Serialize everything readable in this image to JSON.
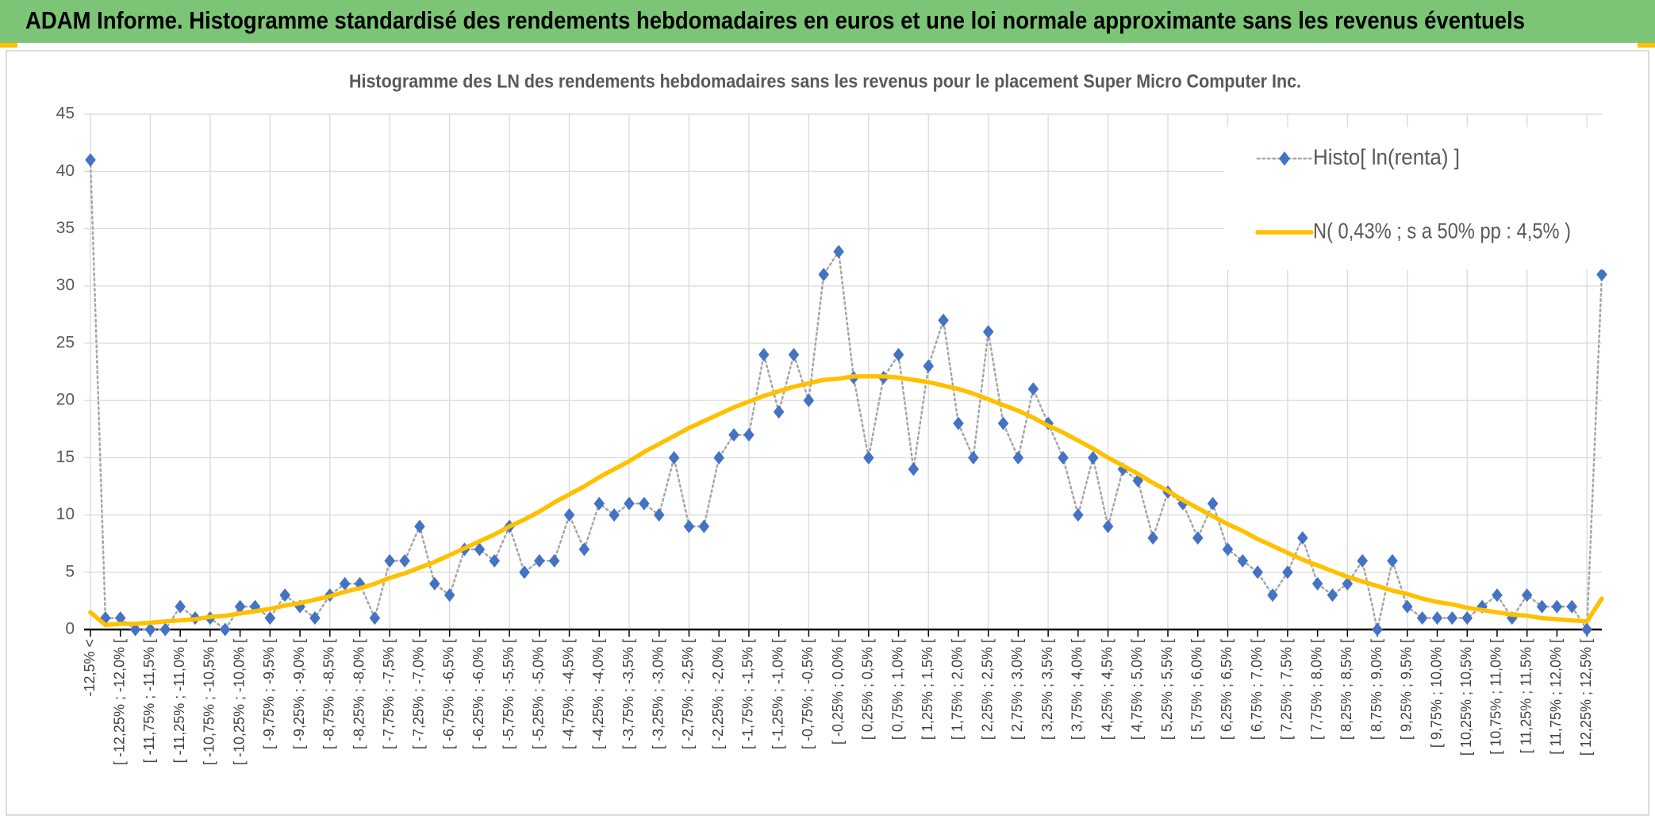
{
  "header": {
    "title": "ADAM Informe. Histogramme standardisé des rendements hebdomadaires en euros et une loi normale approximante sans les revenus éventuels"
  },
  "chart_data": {
    "type": "line",
    "title": "Histogramme des LN des rendements hebdomadaires sans les revenus pour le placement Super Micro Computer Inc.",
    "categories": [
      "-12,5% <",
      null,
      "[ -12,25% ; -12,0% [",
      null,
      "[ -11,75% ; -11,5% [",
      null,
      "[ -11,25% ; -11,0% [",
      null,
      "[ -10,75% ; -10,5% [",
      null,
      "[ -10,25% ; -10,0% [",
      null,
      "[ -9,75% ; -9,5% [",
      null,
      "[ -9,25% ; -9,0% [",
      null,
      "[ -8,75% ; -8,5% [",
      null,
      "[ -8,25% ; -8,0% [",
      null,
      "[ -7,75% ; -7,5% [",
      null,
      "[ -7,25% ; -7,0% [",
      null,
      "[ -6,75% ; -6,5% [",
      null,
      "[ -6,25% ; -6,0% [",
      null,
      "[ -5,75% ; -5,5% [",
      null,
      "[ -5,25% ; -5,0% [",
      null,
      "[ -4,75% ; -4,5% [",
      null,
      "[ -4,25% ; -4,0% [",
      null,
      "[ -3,75% ; -3,5% [",
      null,
      "[ -3,25% ; -3,0% [",
      null,
      "[ -2,75% ; -2,5% [",
      null,
      "[ -2,25% ; -2,0% [",
      null,
      "[ -1,75% ; -1,5% [",
      null,
      "[ -1,25% ; -1,0% [",
      null,
      "[ -0,75% ; -0,5% [",
      null,
      "[ -0,25% ; 0,0% [",
      null,
      "[ 0,25% ; 0,5% [",
      null,
      "[ 0,75% ; 1,0% [",
      null,
      "[ 1,25% ; 1,5% [",
      null,
      "[ 1,75% ; 2,0% [",
      null,
      "[ 2,25% ; 2,5% [",
      null,
      "[ 2,75% ; 3,0% [",
      null,
      "[ 3,25% ; 3,5% [",
      null,
      "[ 3,75% ; 4,0% [",
      null,
      "[ 4,25% ; 4,5% [",
      null,
      "[ 4,75% ; 5,0% [",
      null,
      "[ 5,25% ; 5,5% [",
      null,
      "[ 5,75% ; 6,0% [",
      null,
      "[ 6,25% ; 6,5% [",
      null,
      "[ 6,75% ; 7,0% [",
      null,
      "[ 7,25% ; 7,5% [",
      null,
      "[ 7,75% ; 8,0% [",
      null,
      "[ 8,25% ; 8,5% [",
      null,
      "[ 8,75% ; 9,0% [",
      null,
      "[ 9,25% ; 9,5% [",
      null,
      "[ 9,75% ; 10,0% [",
      null,
      "[ 10,25% ; 10,5% [",
      null,
      "[ 10,75% ; 11,0% [",
      null,
      "[ 11,25% ; 11,5% [",
      null,
      "[ 11,75% ; 12,0% [",
      null,
      "[ 12,25% ; 12,5% [",
      null
    ],
    "series": [
      {
        "name": "Histo[ ln(renta) ]",
        "color": "#4472c4",
        "line_color": "#a6a6a6",
        "marker": "diamond",
        "line_style": "dotted",
        "values": [
          41,
          1,
          1,
          0,
          0,
          0,
          2,
          1,
          1,
          0,
          2,
          2,
          1,
          3,
          2,
          1,
          3,
          4,
          4,
          1,
          6,
          6,
          9,
          4,
          3,
          7,
          7,
          6,
          9,
          5,
          6,
          6,
          10,
          7,
          11,
          10,
          11,
          11,
          10,
          15,
          9,
          9,
          15,
          17,
          17,
          24,
          19,
          24,
          20,
          31,
          33,
          22,
          15,
          22,
          24,
          14,
          23,
          27,
          18,
          15,
          26,
          18,
          15,
          21,
          18,
          15,
          10,
          15,
          9,
          14,
          13,
          8,
          12,
          11,
          8,
          11,
          7,
          6,
          5,
          3,
          5,
          8,
          4,
          3,
          4,
          6,
          0,
          6,
          2,
          1,
          1,
          1,
          1,
          2,
          3,
          1,
          3,
          2,
          2,
          2,
          0,
          31
        ]
      },
      {
        "name": "N( 0,43% ; s a 50% pp : 4,5% )",
        "color": "#ffc000",
        "marker": "none",
        "line_style": "solid",
        "values": [
          1.5,
          0.4,
          0.5,
          0.5,
          0.6,
          0.7,
          0.8,
          0.9,
          1.1,
          1.2,
          1.4,
          1.6,
          1.8,
          2.1,
          2.3,
          2.6,
          2.9,
          3.3,
          3.6,
          4.0,
          4.5,
          4.9,
          5.4,
          5.9,
          6.5,
          7.1,
          7.7,
          8.3,
          9.0,
          9.6,
          10.3,
          11.1,
          11.8,
          12.5,
          13.3,
          14.0,
          14.7,
          15.5,
          16.2,
          16.9,
          17.6,
          18.2,
          18.8,
          19.4,
          19.9,
          20.4,
          20.8,
          21.2,
          21.5,
          21.8,
          21.9,
          22.1,
          22.1,
          22.1,
          22.0,
          21.8,
          21.6,
          21.3,
          21.0,
          20.6,
          20.1,
          19.6,
          19.1,
          18.5,
          17.8,
          17.2,
          16.5,
          15.8,
          15.0,
          14.3,
          13.6,
          12.8,
          12.1,
          11.3,
          10.6,
          9.9,
          9.2,
          8.6,
          7.9,
          7.3,
          6.7,
          6.1,
          5.6,
          5.1,
          4.6,
          4.2,
          3.8,
          3.4,
          3.1,
          2.7,
          2.4,
          2.2,
          1.9,
          1.7,
          1.5,
          1.3,
          1.2,
          1.0,
          0.9,
          0.8,
          0.7,
          2.7
        ]
      }
    ],
    "ylim": [
      0,
      45
    ],
    "yticks": [
      0,
      5,
      10,
      15,
      20,
      25,
      30,
      35,
      40,
      45
    ],
    "grid": true,
    "legend": "upper right"
  }
}
